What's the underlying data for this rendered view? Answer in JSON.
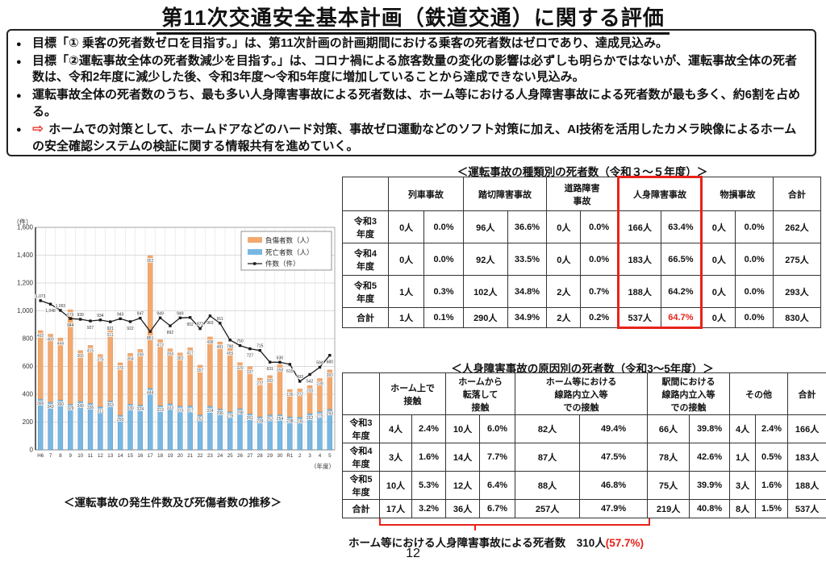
{
  "page": {
    "title": "第11次交通安全基本計画（鉄道交通）に関する評価",
    "page_number": "12"
  },
  "summary_bullets": [
    {
      "arrow": false,
      "text": "目標「① 乗客の死者数ゼロを目指す。」は、第11次計画の計画期間における乗客の死者数はゼロであり、達成見込み。"
    },
    {
      "arrow": false,
      "text": "目標「②運転事故全体の死者数減少を目指す。」は、コロナ禍による旅客数量の変化の影響は必ずしも明らかではないが、運転事故全体の死者数は、令和2年度に減少した後、令和3年度～令和5年度に増加していることから達成できない見込み。"
    },
    {
      "arrow": false,
      "text": "運転事故全体の死者数のうち、最も多い人身障害事故による死者数は、ホーム等における人身障害事故による死者数が最も多く、約6割を占める。"
    },
    {
      "arrow": true,
      "text": "ホームでの対策として、ホームドアなどのハード対策、事故ゼロ運動などのソフト対策に加え、AI技術を活用したカメラ映像によるホームの安全確認システムの検証に関する情報共有を進めていく。"
    }
  ],
  "chart_data": {
    "type": "bar",
    "subtype": "stacked-bar-with-line",
    "title": "＜運転事故の発生件数及び死傷者数の推移＞",
    "y_unit": "（件）",
    "x_unit": "（年度）",
    "ylim": [
      0,
      1600
    ],
    "ytick_step": 200,
    "grid": true,
    "legend_position": "top-right",
    "categories": [
      "H6",
      "7",
      "8",
      "9",
      "10",
      "11",
      "12",
      "13",
      "14",
      "15",
      "16",
      "17",
      "18",
      "19",
      "20",
      "21",
      "22",
      "23",
      "24",
      "25",
      "26",
      "27",
      "28",
      "29",
      "30",
      "R1",
      "2",
      "3",
      "4",
      "5"
    ],
    "series": [
      {
        "name": "負傷者数（人）",
        "type": "bar",
        "stack": "top",
        "values": [
          492,
          489,
          444,
          679,
          365,
          415,
          375,
          511,
          376,
          364,
          398,
          952,
          473,
          394,
          382,
          417,
          357,
          498,
          481,
          455,
          329,
          337,
          277,
          282,
          358,
          196,
          202,
          200,
          238,
          282
        ]
      },
      {
        "name": "死亡者数（人）",
        "type": "bar",
        "stack": "bottom",
        "values": [
          366,
          343,
          360,
          329,
          349,
          336,
          311,
          353,
          250,
          330,
          324,
          444,
          319,
          333,
          315,
          317,
          252,
          314,
          295,
          276,
          298,
          261,
          239,
          252,
          254,
          238,
          236,
          262,
          275,
          293
        ]
      },
      {
        "name": "件数（件）",
        "type": "line",
        "values": [
          1073,
          1048,
          1003,
          944,
          939,
          927,
          934,
          921,
          943,
          922,
          947,
          851,
          949,
          892,
          949,
          952,
          872,
          963,
          911,
          790,
          750,
          727,
          715,
          631,
          630,
          615,
          493,
          542,
          594,
          680
        ]
      }
    ]
  },
  "table1": {
    "title": "＜運転事故の種類別の死者数（令和３～５年度）＞",
    "col_headers": [
      "列車事故",
      "踏切障害事故",
      "道路障害\n事故",
      "人身障害事故",
      "物損事故",
      "合計"
    ],
    "highlight_header": "人身障害事故",
    "row_labels": [
      "令和3\n年度",
      "令和4\n年度",
      "令和5\n年度",
      "合計"
    ],
    "rows": [
      [
        "0人",
        "0.0%",
        "96人",
        "36.6%",
        "0人",
        "0.0%",
        "166人",
        "63.4%",
        "0人",
        "0.0%",
        "262人"
      ],
      [
        "0人",
        "0.0%",
        "92人",
        "33.5%",
        "0人",
        "0.0%",
        "183人",
        "66.5%",
        "0人",
        "0.0%",
        "275人"
      ],
      [
        "1人",
        "0.3%",
        "102人",
        "34.8%",
        "2人",
        "0.7%",
        "188人",
        "64.2%",
        "0人",
        "0.0%",
        "293人"
      ],
      [
        "1人",
        "0.1%",
        "290人",
        "34.9%",
        "2人",
        "0.2%",
        "537人",
        "64.7%",
        "0人",
        "0.0%",
        "830人"
      ]
    ],
    "red_text_value": "64.7%"
  },
  "table2": {
    "title": "＜人身障害事故の原因別の死者数（令和3～5年度）＞",
    "col_headers": [
      "ホーム上で\n接触",
      "ホームから\n転落して\n接触",
      "ホーム等における\n線路内立入等\nでの接触",
      "駅間における\n線路内立入等\nでの接触",
      "その他",
      "合計"
    ],
    "row_labels": [
      "令和3\n年度",
      "令和4\n年度",
      "令和5\n年度",
      "合計"
    ],
    "rows": [
      [
        "4人",
        "2.4%",
        "10人",
        "6.0%",
        "82人",
        "49.4%",
        "66人",
        "39.8%",
        "4人",
        "2.4%",
        "166人"
      ],
      [
        "3人",
        "1.6%",
        "14人",
        "7.7%",
        "87人",
        "47.5%",
        "78人",
        "42.6%",
        "1人",
        "0.5%",
        "183人"
      ],
      [
        "10人",
        "5.3%",
        "12人",
        "6.4%",
        "88人",
        "46.8%",
        "75人",
        "39.9%",
        "3人",
        "1.6%",
        "188人"
      ],
      [
        "17人",
        "3.2%",
        "36人",
        "6.7%",
        "257人",
        "47.9%",
        "219人",
        "40.8%",
        "8人",
        "1.5%",
        "537人"
      ]
    ],
    "note_prefix": "ホーム等における人身障害事故による死者数　310人",
    "note_red": "(57.7%)"
  },
  "colors": {
    "accent_red": "#e8221a",
    "bar_injured_orange": "#f2a96f",
    "bar_deaths_blue": "#79b7e2",
    "line_black": "#1a1a1a"
  }
}
